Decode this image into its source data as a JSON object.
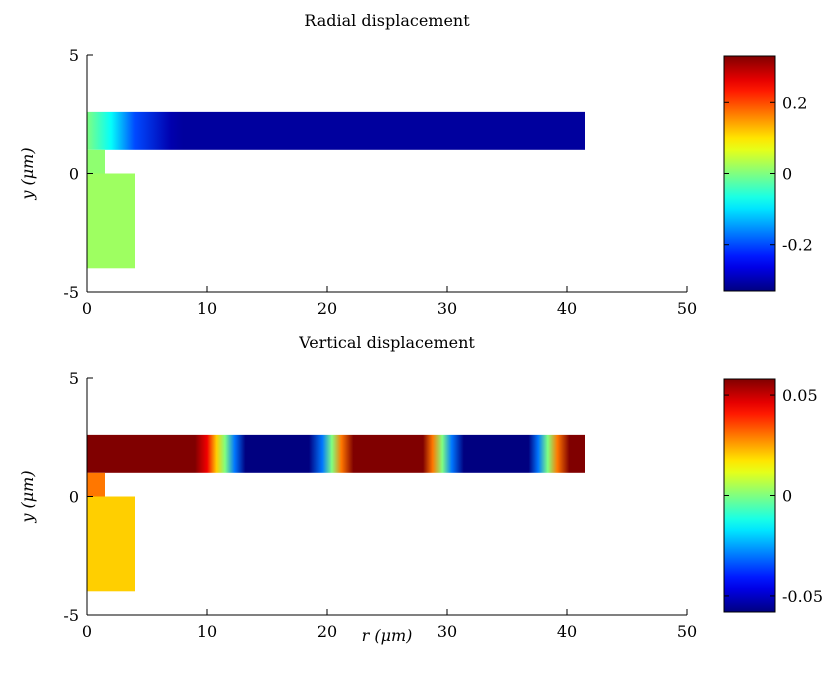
{
  "chart_data": [
    {
      "type": "heatmap",
      "title": "Radial displacement",
      "xlabel": "",
      "ylabel": "y (μm)",
      "xlim": [
        0,
        50
      ],
      "ylim": [
        -5,
        5
      ],
      "xticks": [
        "0",
        "10",
        "20",
        "30",
        "40",
        "50"
      ],
      "yticks": [
        "-5",
        "0",
        "5"
      ],
      "colormap": "jet",
      "color_range": [
        -0.33,
        0.33
      ],
      "colorbar_ticks": [
        "0.2",
        "0",
        "-0.2"
      ],
      "colorbar_tick_values": [
        0.2,
        0,
        -0.2
      ],
      "regions": [
        {
          "name": "arm",
          "r": [
            0,
            41.5
          ],
          "y": [
            1.0,
            2.6
          ],
          "profile": [
            [
              0,
              0.0
            ],
            [
              0.5,
              -0.02
            ],
            [
              2,
              -0.08
            ],
            [
              4,
              -0.2
            ],
            [
              7,
              -0.3
            ],
            [
              8,
              -0.31
            ],
            [
              41.5,
              -0.31
            ]
          ]
        },
        {
          "name": "stem",
          "r": [
            0,
            1.5
          ],
          "y": [
            0.0,
            1.0
          ],
          "value": 0.01
        },
        {
          "name": "pedestal",
          "r": [
            0,
            4
          ],
          "y": [
            -4.0,
            0.0
          ],
          "value": 0.02
        }
      ]
    },
    {
      "type": "heatmap",
      "title": "Vertical displacement",
      "xlabel": "r (μm)",
      "ylabel": "y (μm)",
      "xlim": [
        0,
        50
      ],
      "ylim": [
        -5,
        5
      ],
      "xticks": [
        "0",
        "10",
        "20",
        "30",
        "40",
        "50"
      ],
      "yticks": [
        "-5",
        "0",
        "5"
      ],
      "colormap": "jet",
      "color_range": [
        -0.058,
        0.058
      ],
      "colorbar_ticks": [
        "0.05",
        "0",
        "-0.05"
      ],
      "colorbar_tick_values": [
        0.05,
        0,
        -0.05
      ],
      "regions": [
        {
          "name": "arm",
          "r": [
            0,
            41.5
          ],
          "y": [
            1.0,
            2.6
          ],
          "profile": [
            [
              0,
              0.058
            ],
            [
              9,
              0.058
            ],
            [
              10,
              0.045
            ],
            [
              10.8,
              0.02
            ],
            [
              11.5,
              0.0
            ],
            [
              12.3,
              -0.03
            ],
            [
              13.2,
              -0.058
            ],
            [
              18.5,
              -0.058
            ],
            [
              19.6,
              -0.03
            ],
            [
              20.4,
              0.0
            ],
            [
              21.2,
              0.03
            ],
            [
              22.2,
              0.058
            ],
            [
              28,
              0.058
            ],
            [
              28.8,
              0.03
            ],
            [
              29.6,
              0.0
            ],
            [
              30.4,
              -0.03
            ],
            [
              31.4,
              -0.058
            ],
            [
              36.8,
              -0.058
            ],
            [
              37.6,
              -0.03
            ],
            [
              38.4,
              0.0
            ],
            [
              39.2,
              0.03
            ],
            [
              40.2,
              0.058
            ],
            [
              41.5,
              0.058
            ]
          ]
        },
        {
          "name": "stem",
          "r": [
            0,
            1.5
          ],
          "y": [
            0.0,
            1.0
          ],
          "value": 0.03
        },
        {
          "name": "pedestal",
          "r": [
            0,
            4
          ],
          "y": [
            -4.0,
            0.0
          ],
          "value": 0.02
        }
      ]
    }
  ]
}
